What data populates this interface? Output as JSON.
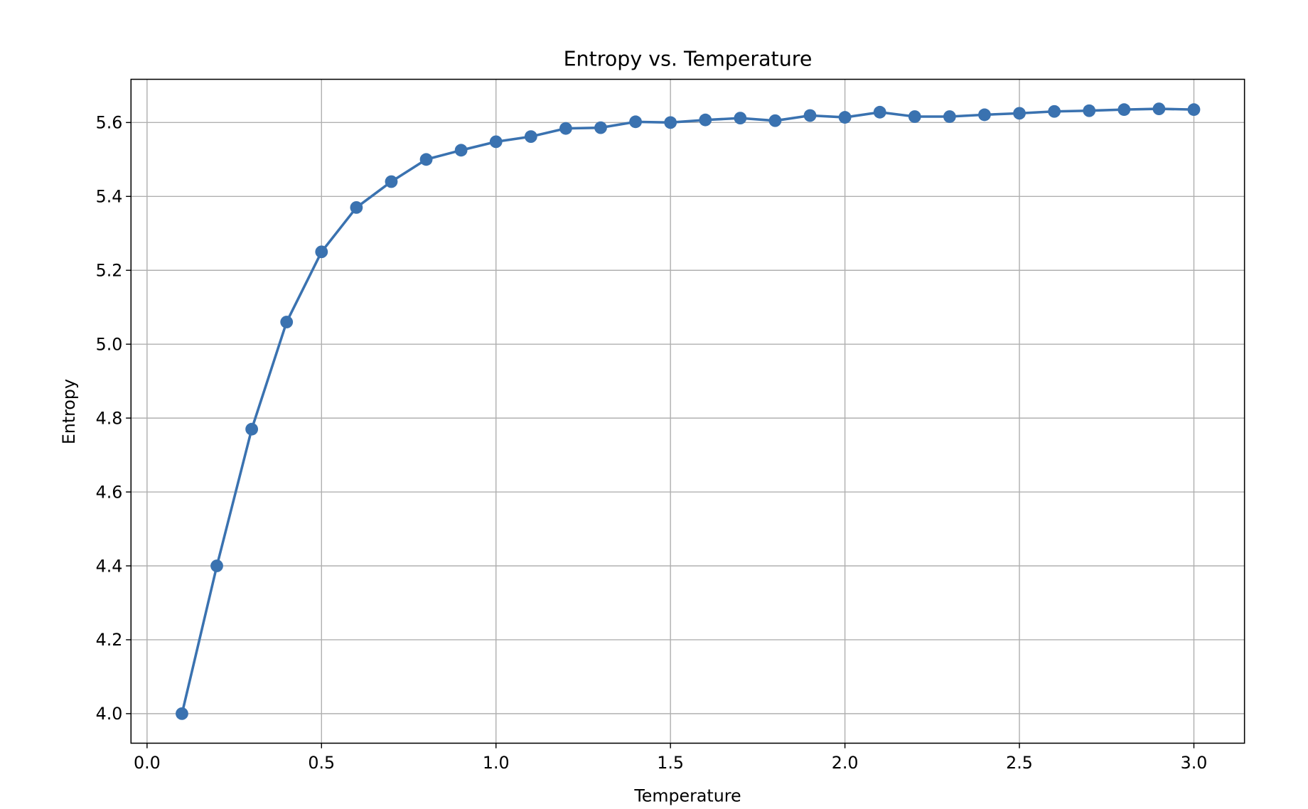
{
  "chart_data": {
    "type": "line",
    "title": "Entropy vs. Temperature",
    "xlabel": "Temperature",
    "ylabel": "Entropy",
    "xlim": [
      -0.046,
      3.145
    ],
    "ylim": [
      3.92,
      5.717
    ],
    "xticks": [
      "0.0",
      "0.5",
      "1.0",
      "1.5",
      "2.0",
      "2.5",
      "3.0"
    ],
    "yticks": [
      "4.0",
      "4.2",
      "4.4",
      "4.6",
      "4.8",
      "5.0",
      "5.2",
      "5.4",
      "5.6"
    ],
    "grid": true,
    "marker": "circle",
    "color": "#3a72b0",
    "x": [
      0.1,
      0.2,
      0.3,
      0.4,
      0.5,
      0.6,
      0.7,
      0.8,
      0.9,
      1.0,
      1.1,
      1.2,
      1.3,
      1.4,
      1.5,
      1.6,
      1.7,
      1.8,
      1.9,
      2.0,
      2.1,
      2.2,
      2.3,
      2.4,
      2.5,
      2.6,
      2.7,
      2.8,
      2.9,
      3.0
    ],
    "y": [
      4.0,
      4.4,
      4.77,
      5.06,
      5.25,
      5.37,
      5.44,
      5.5,
      5.525,
      5.548,
      5.562,
      5.584,
      5.586,
      5.602,
      5.6,
      5.607,
      5.612,
      5.605,
      5.619,
      5.614,
      5.628,
      5.616,
      5.616,
      5.621,
      5.625,
      5.63,
      5.632,
      5.635,
      5.637,
      5.635
    ]
  }
}
